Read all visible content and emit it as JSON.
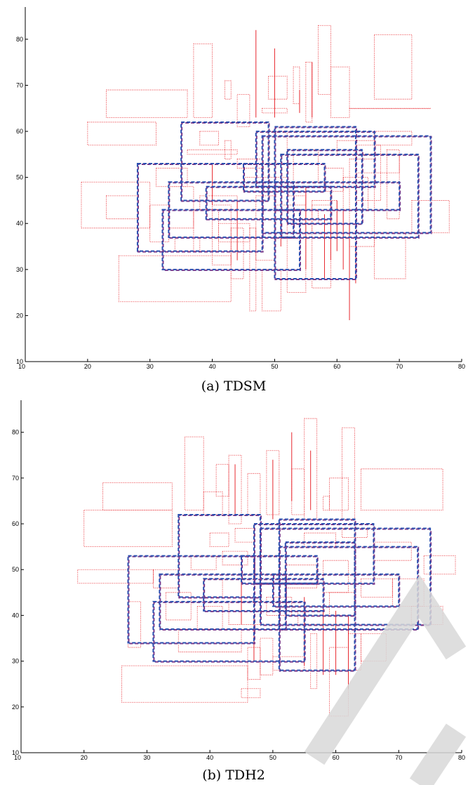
{
  "colors": {
    "small_boxes": "#e8282f",
    "large_boxes_a": "#2a4fb0",
    "large_boxes_b": "#7b3a8a"
  },
  "chart_data": [
    {
      "type": "scatter",
      "caption": "(a)  TDSM",
      "title": "",
      "xlabel": "",
      "ylabel": "",
      "xlim": [
        10,
        80
      ],
      "ylim": [
        10,
        87
      ],
      "xticks": [
        "10",
        "20",
        "30",
        "40",
        "50",
        "60",
        "70",
        "80"
      ],
      "yticks": [
        "10",
        "20",
        "30",
        "40",
        "50",
        "60",
        "70",
        "80"
      ],
      "grid": false,
      "small_boxes": [
        [
          20,
          57,
          31,
          62
        ],
        [
          23,
          63,
          36,
          69
        ],
        [
          19,
          39,
          30,
          49
        ],
        [
          25,
          23,
          43,
          33
        ],
        [
          37,
          63,
          40,
          79
        ],
        [
          42,
          67,
          43,
          71
        ],
        [
          46,
          21,
          47,
          39
        ],
        [
          44,
          61,
          46,
          68
        ],
        [
          49,
          67,
          52,
          72
        ],
        [
          48,
          64,
          52,
          65
        ],
        [
          53,
          66,
          54,
          74
        ],
        [
          55,
          62,
          56,
          75
        ],
        [
          57,
          68,
          59,
          83
        ],
        [
          59,
          63,
          62,
          74
        ],
        [
          66,
          67,
          72,
          81
        ],
        [
          62,
          66,
          75,
          65
        ],
        [
          63,
          45,
          67,
          57
        ],
        [
          61,
          43,
          65,
          50
        ],
        [
          68,
          41,
          70,
          56
        ],
        [
          72,
          38,
          78,
          45
        ],
        [
          62,
          35,
          66,
          54
        ],
        [
          66,
          28,
          71,
          38
        ],
        [
          56,
          26,
          59,
          44
        ],
        [
          52,
          25,
          55,
          46
        ],
        [
          47,
          32,
          50,
          46
        ],
        [
          48,
          21,
          51,
          30
        ],
        [
          43,
          28,
          45,
          39
        ],
        [
          40,
          31,
          43,
          44
        ],
        [
          37,
          34,
          41,
          43
        ],
        [
          33,
          39,
          37,
          48
        ],
        [
          30,
          36,
          33,
          44
        ],
        [
          23,
          41,
          28,
          46
        ],
        [
          31,
          48,
          36,
          52
        ],
        [
          36,
          55,
          44,
          56
        ],
        [
          38,
          57,
          41,
          60
        ],
        [
          42,
          54,
          43,
          58
        ],
        [
          44,
          52,
          48,
          54
        ],
        [
          49,
          50,
          52,
          60
        ],
        [
          53,
          49,
          57,
          56
        ],
        [
          58,
          47,
          61,
          52
        ],
        [
          60,
          55,
          66,
          58
        ],
        [
          63,
          51,
          70,
          55
        ],
        [
          66,
          57,
          72,
          60
        ],
        [
          45,
          47,
          49,
          50
        ],
        [
          50,
          44,
          55,
          47
        ],
        [
          56,
          38,
          60,
          45
        ],
        [
          38,
          43,
          44,
          46
        ],
        [
          34,
          34,
          38,
          37
        ],
        [
          41,
          36,
          46,
          40
        ],
        [
          52,
          40,
          57,
          43
        ]
      ],
      "thin_lines": [
        [
          [
            44,
            32
          ],
          [
            44,
            45
          ]
        ],
        [
          [
            55,
            30
          ],
          [
            55,
            48
          ]
        ],
        [
          [
            58,
            28
          ],
          [
            58,
            42
          ]
        ],
        [
          [
            59,
            32
          ],
          [
            59,
            47
          ]
        ],
        [
          [
            60,
            34
          ],
          [
            60,
            45
          ]
        ],
        [
          [
            61,
            30
          ],
          [
            61,
            43
          ]
        ],
        [
          [
            62,
            19
          ],
          [
            62,
            40
          ]
        ],
        [
          [
            63,
            27
          ],
          [
            63,
            36
          ]
        ],
        [
          [
            47,
            63
          ],
          [
            47,
            82
          ]
        ],
        [
          [
            50,
            63
          ],
          [
            50,
            78
          ]
        ],
        [
          [
            54,
            64
          ],
          [
            54,
            69
          ]
        ],
        [
          [
            40,
            44
          ],
          [
            40,
            53
          ]
        ],
        [
          [
            51,
            35
          ],
          [
            51,
            42
          ]
        ],
        [
          [
            56,
            63
          ],
          [
            56,
            75
          ]
        ]
      ],
      "large_boxes": [
        [
          28,
          34,
          48,
          53
        ],
        [
          32,
          30,
          54,
          43
        ],
        [
          33,
          37,
          53,
          49
        ],
        [
          35,
          45,
          49,
          62
        ],
        [
          39,
          41,
          59,
          48
        ],
        [
          45,
          47,
          58,
          53
        ],
        [
          47,
          48,
          66,
          60
        ],
        [
          48,
          38,
          75,
          59
        ],
        [
          50,
          28,
          63,
          61
        ],
        [
          50,
          43,
          70,
          49
        ],
        [
          51,
          37,
          73,
          55
        ],
        [
          52,
          40,
          64,
          56
        ]
      ]
    },
    {
      "type": "scatter",
      "caption": "(b)  TDH2",
      "title": "",
      "xlabel": "",
      "ylabel": "",
      "xlim": [
        10,
        80
      ],
      "ylim": [
        10,
        87
      ],
      "xticks": [
        "10",
        "20",
        "30",
        "40",
        "50",
        "60",
        "70",
        "80"
      ],
      "yticks": [
        "10",
        "20",
        "30",
        "40",
        "50",
        "60",
        "70",
        "80"
      ],
      "grid": false,
      "small_boxes": [
        [
          20,
          55,
          34,
          63
        ],
        [
          23,
          63,
          34,
          69
        ],
        [
          19,
          47,
          31,
          50
        ],
        [
          26,
          21,
          46,
          29
        ],
        [
          36,
          63,
          39,
          79
        ],
        [
          39,
          62,
          42,
          67
        ],
        [
          41,
          66,
          43,
          73
        ],
        [
          43,
          60,
          45,
          75
        ],
        [
          46,
          62,
          48,
          71
        ],
        [
          49,
          62,
          51,
          76
        ],
        [
          53,
          62,
          55,
          72
        ],
        [
          55,
          61,
          57,
          83
        ],
        [
          58,
          63,
          59,
          66
        ],
        [
          59,
          63,
          62,
          70
        ],
        [
          61,
          61,
          63,
          81
        ],
        [
          64,
          63,
          77,
          72
        ],
        [
          27,
          33,
          29,
          43
        ],
        [
          35,
          32,
          45,
          37
        ],
        [
          46,
          26,
          48,
          33
        ],
        [
          48,
          27,
          50,
          35
        ],
        [
          50,
          28,
          55,
          31
        ],
        [
          45,
          22,
          48,
          24
        ],
        [
          56,
          24,
          57,
          36
        ],
        [
          59,
          18,
          62,
          33
        ],
        [
          62,
          28,
          64,
          36
        ],
        [
          64,
          30,
          68,
          36
        ],
        [
          69,
          42,
          74,
          48
        ],
        [
          72,
          38,
          77,
          42
        ],
        [
          74,
          49,
          79,
          53
        ],
        [
          66,
          52,
          72,
          56
        ],
        [
          64,
          44,
          69,
          48
        ],
        [
          58,
          45,
          62,
          52
        ],
        [
          52,
          46,
          57,
          51
        ],
        [
          47,
          49,
          51,
          53
        ],
        [
          42,
          51,
          46,
          54
        ],
        [
          37,
          50,
          41,
          53
        ],
        [
          31,
          46,
          35,
          50
        ],
        [
          33,
          39,
          37,
          45
        ],
        [
          38,
          37,
          42,
          42
        ],
        [
          43,
          38,
          48,
          43
        ],
        [
          49,
          40,
          53,
          44
        ],
        [
          54,
          38,
          58,
          41
        ],
        [
          59,
          40,
          63,
          45
        ],
        [
          40,
          55,
          43,
          58
        ],
        [
          44,
          56,
          47,
          59
        ],
        [
          55,
          55,
          60,
          58
        ],
        [
          61,
          57,
          65,
          59
        ],
        [
          39,
          44,
          42,
          48
        ]
      ],
      "thin_lines": [
        [
          [
            45,
            38
          ],
          [
            45,
            48
          ]
        ],
        [
          [
            55,
            29
          ],
          [
            55,
            44
          ]
        ],
        [
          [
            58,
            27
          ],
          [
            58,
            42
          ]
        ],
        [
          [
            60,
            27
          ],
          [
            60,
            41
          ]
        ],
        [
          [
            62,
            24
          ],
          [
            62,
            40
          ]
        ],
        [
          [
            53,
            65
          ],
          [
            53,
            80
          ]
        ],
        [
          [
            56,
            63
          ],
          [
            56,
            76
          ]
        ],
        [
          [
            44,
            62
          ],
          [
            44,
            73
          ]
        ],
        [
          [
            50,
            61
          ],
          [
            50,
            74
          ]
        ],
        [
          [
            47,
            30
          ],
          [
            47,
            40
          ]
        ]
      ],
      "large_boxes": [
        [
          27,
          34,
          47,
          53
        ],
        [
          31,
          30,
          55,
          43
        ],
        [
          32,
          37,
          52,
          49
        ],
        [
          35,
          44,
          48,
          62
        ],
        [
          39,
          41,
          58,
          48
        ],
        [
          45,
          47,
          57,
          53
        ],
        [
          47,
          47,
          66,
          60
        ],
        [
          48,
          38,
          75,
          59
        ],
        [
          51,
          28,
          63,
          61
        ],
        [
          50,
          42,
          70,
          49
        ],
        [
          51,
          37,
          73,
          55
        ],
        [
          52,
          40,
          63,
          56
        ]
      ]
    }
  ]
}
